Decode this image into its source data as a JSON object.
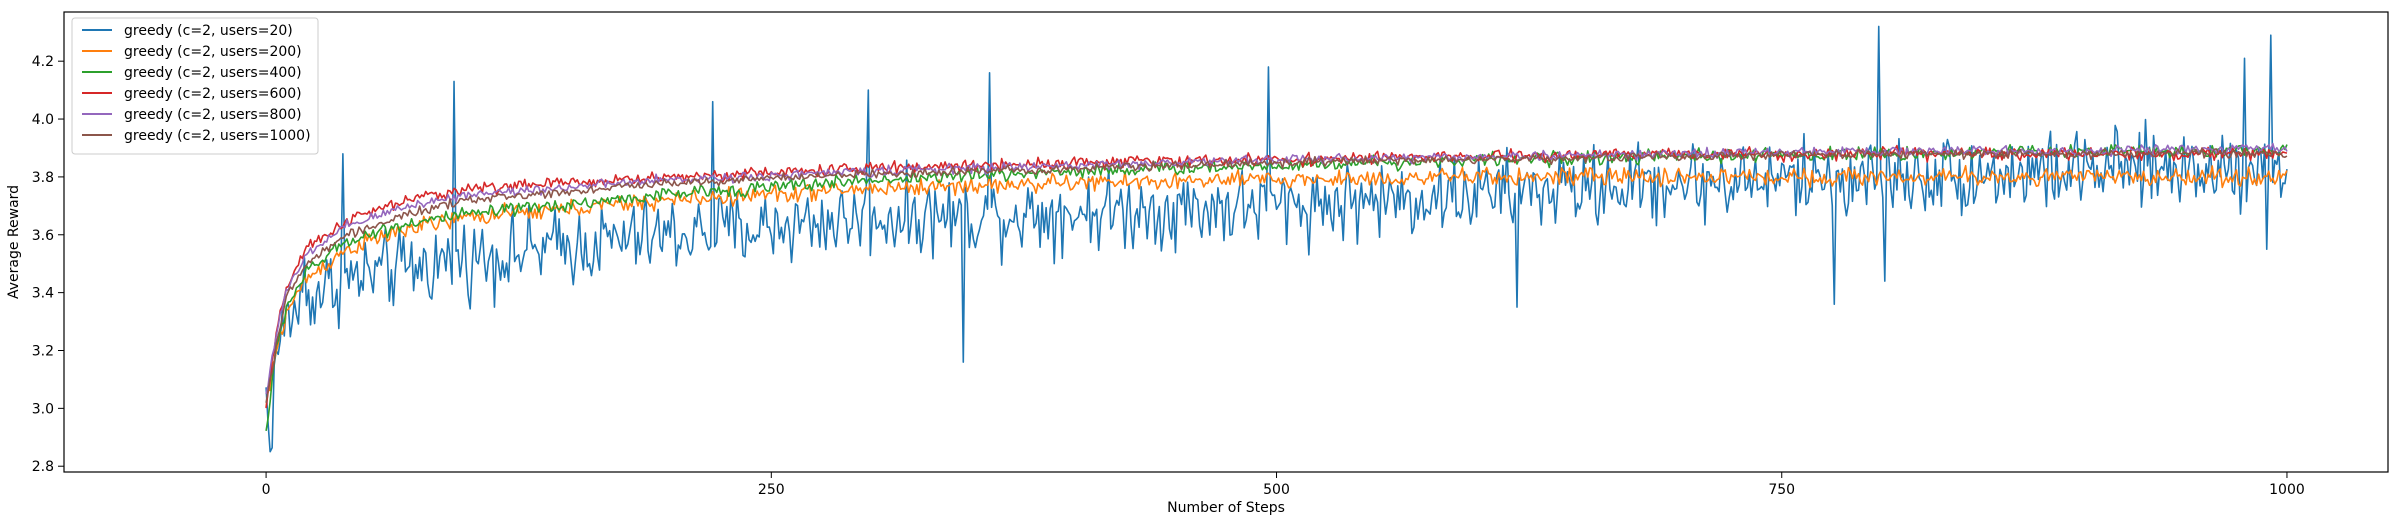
{
  "chart_data": {
    "type": "line",
    "title": "",
    "xlabel": "Number of Steps",
    "ylabel": "Average Reward",
    "xlim": [
      -100,
      1050
    ],
    "ylim": [
      2.78,
      4.37
    ],
    "xticks": [
      0,
      250,
      500,
      750,
      1000
    ],
    "yticks": [
      2.8,
      3.0,
      3.2,
      3.4,
      3.6,
      3.8,
      4.0,
      4.2
    ],
    "xtick_labels": [
      "0",
      "250",
      "500",
      "750",
      "1000"
    ],
    "ytick_labels": [
      "2.8",
      "3.0",
      "3.2",
      "3.4",
      "3.6",
      "3.8",
      "4.0",
      "4.2"
    ],
    "grid": false,
    "legend_position": "top-left",
    "series": [
      {
        "name": "greedy (c=2, users=20)",
        "color": "#1f77b4",
        "noise": 0.2,
        "anchors": [
          [
            0,
            3.05
          ],
          [
            2,
            2.86
          ],
          [
            5,
            3.2
          ],
          [
            10,
            3.3
          ],
          [
            20,
            3.38
          ],
          [
            30,
            3.42
          ],
          [
            50,
            3.46
          ],
          [
            100,
            3.52
          ],
          [
            150,
            3.56
          ],
          [
            200,
            3.6
          ],
          [
            300,
            3.66
          ],
          [
            400,
            3.68
          ],
          [
            500,
            3.7
          ],
          [
            600,
            3.74
          ],
          [
            700,
            3.78
          ],
          [
            800,
            3.8
          ],
          [
            900,
            3.82
          ],
          [
            1000,
            3.84
          ]
        ],
        "spikes": [
          [
            2,
            2.85
          ],
          [
            5,
            3.2
          ],
          [
            19,
            3.52
          ],
          [
            38,
            3.88
          ],
          [
            93,
            4.13
          ],
          [
            221,
            4.06
          ],
          [
            298,
            4.1
          ],
          [
            345,
            3.16
          ],
          [
            358,
            4.16
          ],
          [
            496,
            4.18
          ],
          [
            619,
            3.35
          ],
          [
            776,
            3.36
          ],
          [
            798,
            4.32
          ],
          [
            801,
            3.44
          ],
          [
            992,
            4.29
          ],
          [
            990,
            3.55
          ],
          [
            979,
            4.21
          ]
        ]
      },
      {
        "name": "greedy (c=2, users=200)",
        "color": "#ff7f0e",
        "noise": 0.045,
        "anchors": [
          [
            0,
            3.0
          ],
          [
            5,
            3.2
          ],
          [
            10,
            3.33
          ],
          [
            20,
            3.45
          ],
          [
            40,
            3.55
          ],
          [
            70,
            3.62
          ],
          [
            100,
            3.66
          ],
          [
            200,
            3.72
          ],
          [
            300,
            3.76
          ],
          [
            400,
            3.78
          ],
          [
            500,
            3.79
          ],
          [
            600,
            3.8
          ],
          [
            700,
            3.8
          ],
          [
            800,
            3.8
          ],
          [
            900,
            3.8
          ],
          [
            1000,
            3.8
          ]
        ],
        "spikes": []
      },
      {
        "name": "greedy (c=2, users=400)",
        "color": "#2ca02c",
        "noise": 0.035,
        "anchors": [
          [
            0,
            2.92
          ],
          [
            5,
            3.2
          ],
          [
            10,
            3.35
          ],
          [
            20,
            3.47
          ],
          [
            40,
            3.58
          ],
          [
            70,
            3.64
          ],
          [
            100,
            3.67
          ],
          [
            200,
            3.74
          ],
          [
            300,
            3.79
          ],
          [
            400,
            3.82
          ],
          [
            500,
            3.84
          ],
          [
            600,
            3.86
          ],
          [
            700,
            3.87
          ],
          [
            800,
            3.88
          ],
          [
            900,
            3.89
          ],
          [
            1000,
            3.89
          ]
        ],
        "spikes": []
      },
      {
        "name": "greedy (c=2, users=600)",
        "color": "#d62728",
        "noise": 0.03,
        "anchors": [
          [
            0,
            3.0
          ],
          [
            5,
            3.25
          ],
          [
            10,
            3.42
          ],
          [
            20,
            3.55
          ],
          [
            40,
            3.65
          ],
          [
            70,
            3.72
          ],
          [
            100,
            3.76
          ],
          [
            200,
            3.8
          ],
          [
            300,
            3.83
          ],
          [
            400,
            3.85
          ],
          [
            500,
            3.86
          ],
          [
            600,
            3.87
          ],
          [
            700,
            3.88
          ],
          [
            800,
            3.88
          ],
          [
            900,
            3.88
          ],
          [
            1000,
            3.88
          ]
        ],
        "spikes": []
      },
      {
        "name": "greedy (c=2, users=800)",
        "color": "#9467bd",
        "noise": 0.025,
        "anchors": [
          [
            0,
            3.05
          ],
          [
            5,
            3.26
          ],
          [
            10,
            3.4
          ],
          [
            20,
            3.53
          ],
          [
            40,
            3.63
          ],
          [
            70,
            3.7
          ],
          [
            100,
            3.74
          ],
          [
            200,
            3.79
          ],
          [
            300,
            3.82
          ],
          [
            400,
            3.84
          ],
          [
            500,
            3.86
          ],
          [
            600,
            3.87
          ],
          [
            700,
            3.88
          ],
          [
            800,
            3.89
          ],
          [
            900,
            3.89
          ],
          [
            1000,
            3.9
          ]
        ],
        "spikes": []
      },
      {
        "name": "greedy (c=2, users=1000)",
        "color": "#8c564b",
        "noise": 0.022,
        "anchors": [
          [
            0,
            3.02
          ],
          [
            5,
            3.22
          ],
          [
            10,
            3.38
          ],
          [
            20,
            3.5
          ],
          [
            40,
            3.6
          ],
          [
            70,
            3.67
          ],
          [
            100,
            3.72
          ],
          [
            200,
            3.78
          ],
          [
            300,
            3.81
          ],
          [
            400,
            3.83
          ],
          [
            500,
            3.85
          ],
          [
            600,
            3.86
          ],
          [
            700,
            3.87
          ],
          [
            800,
            3.88
          ],
          [
            900,
            3.88
          ],
          [
            1000,
            3.88
          ]
        ],
        "spikes": []
      }
    ]
  }
}
